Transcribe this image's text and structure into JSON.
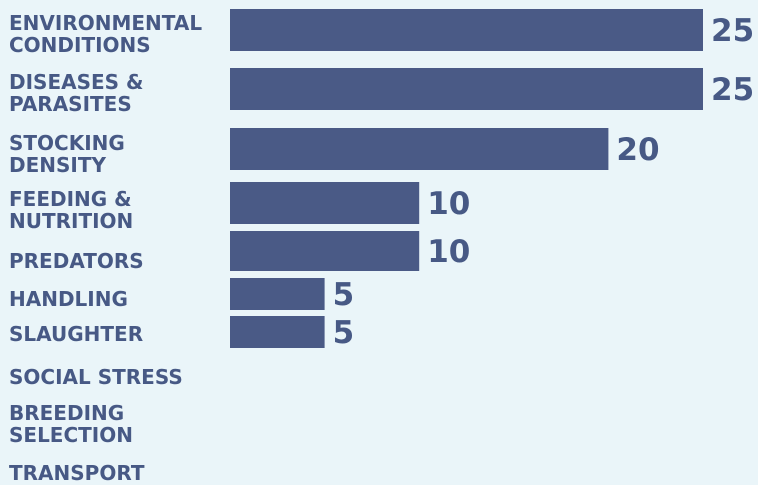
{
  "chart_data": {
    "type": "bar",
    "orientation": "horizontal",
    "categories": [
      [
        "ENVIRONMENTAL",
        "CONDITIONS"
      ],
      [
        "DISEASES &",
        "PARASITES"
      ],
      [
        "STOCKING",
        "DENSITY"
      ],
      [
        "FEEDING &",
        "NUTRITION"
      ],
      [
        "PREDATORS"
      ],
      [
        "HANDLING"
      ],
      [
        "SLAUGHTER"
      ],
      [
        "SOCIAL STRESS"
      ],
      [
        "BREEDING",
        "SELECTION"
      ],
      [
        "TRANSPORT"
      ]
    ],
    "values": [
      25,
      25,
      20,
      10,
      10,
      5,
      5,
      0,
      0,
      0
    ],
    "value_labels": [
      "25",
      "25",
      "20",
      "10",
      "10",
      "5",
      "5",
      "",
      "",
      ""
    ],
    "xlim": [
      0,
      25
    ],
    "grid": false,
    "legend": "none",
    "colors": {
      "bar": "#4a5a86",
      "text": "#475985",
      "background": "#eaf5f9"
    }
  }
}
